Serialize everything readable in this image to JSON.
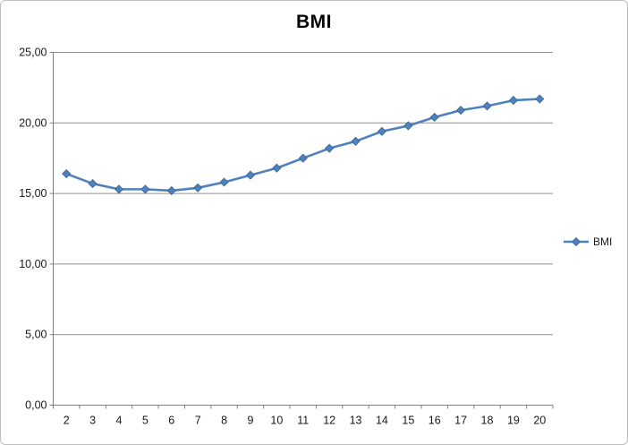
{
  "chart_data": {
    "type": "line",
    "title": "BMI",
    "categories": [
      "2",
      "3",
      "4",
      "5",
      "6",
      "7",
      "8",
      "9",
      "10",
      "11",
      "12",
      "13",
      "14",
      "15",
      "16",
      "17",
      "18",
      "19",
      "20"
    ],
    "series": [
      {
        "name": "BMI",
        "values": [
          16.4,
          15.7,
          15.3,
          15.3,
          15.2,
          15.4,
          15.8,
          16.3,
          16.8,
          17.5,
          18.2,
          18.7,
          19.4,
          19.8,
          20.4,
          20.9,
          21.2,
          21.6,
          21.7
        ]
      }
    ],
    "xlabel": "",
    "ylabel": "",
    "ylim": [
      0,
      25
    ],
    "y_tick_interval": 5,
    "y_tick_labels": [
      "0,00",
      "5,00",
      "10,00",
      "15,00",
      "20,00",
      "25,00"
    ],
    "grid": "horizontal-major",
    "legend_position": "right-middle",
    "marker": "diamond",
    "colors": {
      "series": "#4F81BD",
      "marker_stroke": "#3a6292",
      "gridline": "#909090",
      "axis": "#7f7f7f",
      "tick_text": "#1a1a1a",
      "title_text": "#000000",
      "frame_border": "#bfbfbf",
      "background": "#ffffff"
    }
  }
}
